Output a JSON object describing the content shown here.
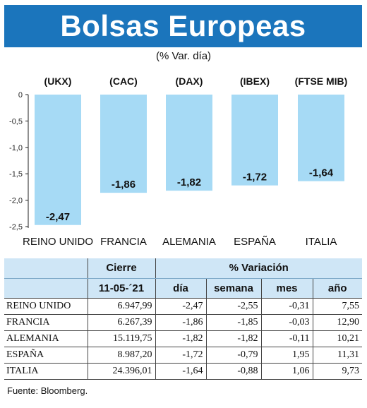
{
  "header": {
    "title": "Bolsas Europeas",
    "subtitle": "(% Var. día)"
  },
  "chart_data": {
    "type": "bar",
    "categories": [
      "REINO UNIDO",
      "FRANCIA",
      "ALEMANIA",
      "ESPAÑA",
      "ITALIA"
    ],
    "index_codes": [
      "(UKX)",
      "(CAC)",
      "(DAX)",
      "(IBEX)",
      "(FTSE MIB)"
    ],
    "values": [
      -2.47,
      -1.86,
      -1.82,
      -1.72,
      -1.64
    ],
    "value_labels": [
      "-2,47",
      "-1,86",
      "-1,82",
      "-1,72",
      "-1,64"
    ],
    "y_ticks": [
      0,
      -0.5,
      -1.0,
      -1.5,
      -2.0,
      -2.5
    ],
    "y_tick_labels": [
      "0",
      "-0,5",
      "-1,0",
      "-1,5",
      "-2,0",
      "-2,5"
    ],
    "ylim": [
      -2.5,
      0
    ],
    "bar_color": "#a6daf5",
    "grid": false
  },
  "table": {
    "group_headers": [
      "Cierre",
      "% Variación"
    ],
    "date": "11-05-´21",
    "period_headers": [
      "día",
      "semana",
      "mes",
      "año"
    ],
    "rows": [
      {
        "name": "REINO UNIDO",
        "close": "6.947,99",
        "day": "-2,47",
        "week": "-2,55",
        "month": "-0,31",
        "year": "7,55"
      },
      {
        "name": "FRANCIA",
        "close": "6.267,39",
        "day": "-1,86",
        "week": "-1,85",
        "month": "-0,03",
        "year": "12,90"
      },
      {
        "name": "ALEMANIA",
        "close": "15.119,75",
        "day": "-1,82",
        "week": "-1,82",
        "month": "-0,11",
        "year": "10,21"
      },
      {
        "name": "ESPAÑA",
        "close": "8.987,20",
        "day": "-1,72",
        "week": "-0,79",
        "month": "1,95",
        "year": "11,31"
      },
      {
        "name": "ITALIA",
        "close": "24.396,01",
        "day": "-1,64",
        "week": "-0,88",
        "month": "1,06",
        "year": "9,73"
      }
    ]
  },
  "footer": {
    "source": "Fuente: Bloomberg."
  },
  "colors": {
    "banner": "#1b75bc",
    "bar": "#a6daf5",
    "table_header": "#cfe6f6"
  }
}
